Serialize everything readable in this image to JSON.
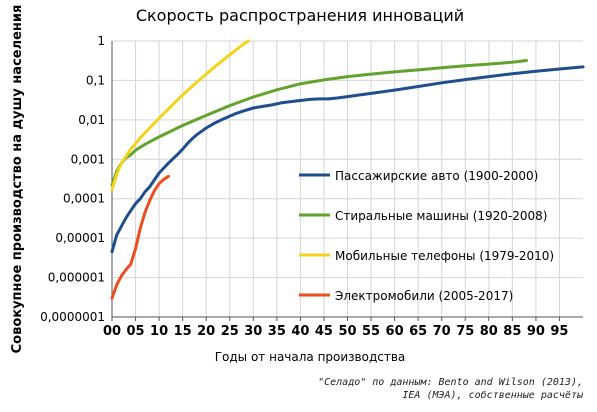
{
  "chart_data": {
    "type": "line",
    "title": "Скорость распространения инноваций",
    "xlabel": "Годы от начала производства",
    "ylabel": "Совокупное производство на душу населения",
    "xlim": [
      0,
      100
    ],
    "ylim": [
      1e-07,
      1
    ],
    "y_scale": "log",
    "grid": true,
    "legend_position": "center-right",
    "x_ticks": [
      "00",
      "05",
      "10",
      "15",
      "20",
      "25",
      "30",
      "35",
      "40",
      "45",
      "50",
      "55",
      "60",
      "65",
      "70",
      "75",
      "80",
      "85",
      "90",
      "95"
    ],
    "y_ticks": [
      "1",
      "0,1",
      "0,01",
      "0,001",
      "0,0001",
      "0,00001",
      "0,000001",
      "0,0000001"
    ],
    "series": [
      {
        "name": "Пассажирские авто (1900-2000)",
        "color": "#1f4e8c",
        "x": [
          0,
          1,
          2,
          3,
          4,
          5,
          6,
          7,
          8,
          9,
          10,
          11,
          12,
          13,
          14,
          15,
          16,
          17,
          18,
          20,
          22,
          24,
          26,
          28,
          30,
          32,
          34,
          36,
          38,
          40,
          42,
          44,
          46,
          48,
          50,
          55,
          60,
          65,
          70,
          75,
          80,
          85,
          90,
          95,
          100
        ],
        "y": [
          4.5e-06,
          1.2e-05,
          2e-05,
          3.3e-05,
          5e-05,
          7.5e-05,
          0.0001,
          0.00015,
          0.0002,
          0.0003,
          0.00045,
          0.0006,
          0.0008,
          0.00105,
          0.00135,
          0.0018,
          0.0025,
          0.0033,
          0.0042,
          0.0062,
          0.0085,
          0.011,
          0.014,
          0.017,
          0.02,
          0.022,
          0.024,
          0.027,
          0.029,
          0.031,
          0.033,
          0.034,
          0.034,
          0.036,
          0.039,
          0.047,
          0.057,
          0.07,
          0.087,
          0.105,
          0.125,
          0.148,
          0.17,
          0.195,
          0.22
        ]
      },
      {
        "name": "Стиральные машины (1920-2008)",
        "color": "#62a32e",
        "x": [
          0,
          1,
          2,
          3,
          4,
          5,
          7,
          10,
          15,
          20,
          25,
          30,
          35,
          40,
          45,
          50,
          55,
          60,
          65,
          70,
          75,
          80,
          85,
          88
        ],
        "y": [
          0.00022,
          0.0005,
          0.0008,
          0.0011,
          0.0013,
          0.0017,
          0.0024,
          0.0037,
          0.0072,
          0.013,
          0.023,
          0.038,
          0.058,
          0.082,
          0.103,
          0.125,
          0.145,
          0.165,
          0.185,
          0.21,
          0.235,
          0.26,
          0.29,
          0.32
        ]
      },
      {
        "name": "Мобильные телефоны (1979-2010)",
        "color": "#f5d21c",
        "x": [
          0,
          1,
          2,
          3,
          4,
          5,
          6,
          8,
          10,
          12,
          14,
          16,
          18,
          20,
          22,
          24,
          26,
          28,
          29
        ],
        "y": [
          0.00017,
          0.00042,
          0.0008,
          0.0012,
          0.0018,
          0.0025,
          0.0035,
          0.0062,
          0.011,
          0.019,
          0.033,
          0.055,
          0.09,
          0.145,
          0.23,
          0.36,
          0.55,
          0.85,
          1.0
        ]
      },
      {
        "name": "Электромобили (2005-2017)",
        "color": "#ec4e20",
        "x": [
          0,
          1,
          2,
          3,
          4,
          5,
          6,
          7,
          8,
          9,
          10,
          11,
          12
        ],
        "y": [
          3e-07,
          6.5e-07,
          1.1e-06,
          1.6e-06,
          2.2e-06,
          5.5e-06,
          1.8e-05,
          4.5e-05,
          9e-05,
          0.00016,
          0.00024,
          0.00031,
          0.00037
        ]
      }
    ]
  },
  "source_line1": "\"Селадо\" по данным: Bento and Wilson (2013),",
  "source_line2": "IEA (МЭА), собственные расчёты"
}
